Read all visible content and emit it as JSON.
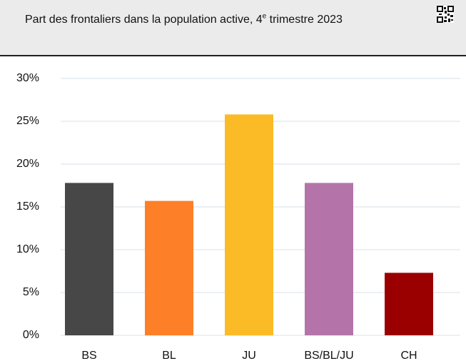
{
  "chart_data": {
    "type": "bar",
    "title": {
      "main": "Part des frontaliers dans la population active, 4",
      "sup": "e",
      "rest": " trimestre 2023"
    },
    "categories": [
      "BS",
      "BL",
      "JU",
      "BS/BL/JU",
      "CH"
    ],
    "values": [
      17.8,
      15.7,
      25.8,
      17.8,
      7.3
    ],
    "colors": [
      "#474747",
      "#fd7f28",
      "#fbbb27",
      "#b474aa",
      "#9b0000"
    ],
    "ylim": [
      0,
      30
    ],
    "yticks": [
      {
        "value": 0,
        "label": "0%"
      },
      {
        "value": 5,
        "label": "5%"
      },
      {
        "value": 10,
        "label": "10%"
      },
      {
        "value": 15,
        "label": "15%"
      },
      {
        "value": 20,
        "label": "20%"
      },
      {
        "value": 25,
        "label": "25%"
      },
      {
        "value": 30,
        "label": "30%"
      }
    ],
    "grid": true
  }
}
